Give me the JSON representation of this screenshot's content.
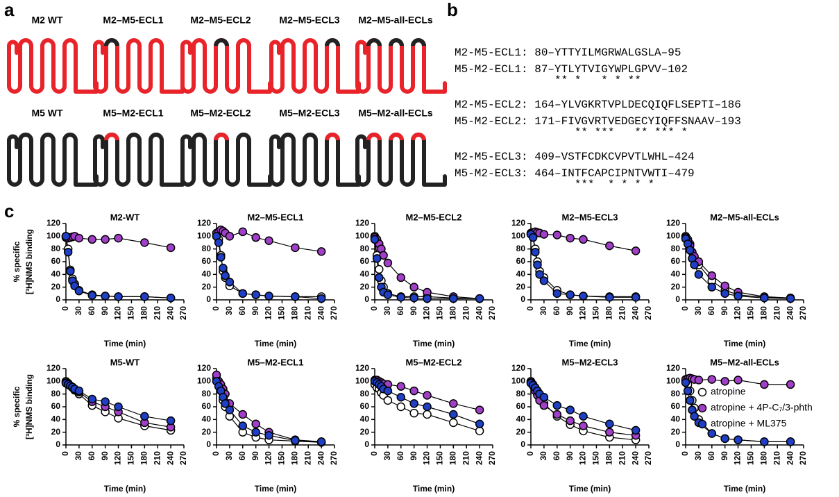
{
  "panel_labels": [
    "a",
    "b",
    "c"
  ],
  "panel_a": {
    "receptors": [
      "M2 WT",
      "M2–M5-ECL1",
      "M2–M5-ECL2",
      "M2–M5-ECL3",
      "M2–M5-all-ECLs",
      "M5 WT",
      "M5–M2-ECL1",
      "M5–M2-ECL2",
      "M5–M2-ECL3",
      "M5–M2-all-ECLs"
    ]
  },
  "panel_b": {
    "groups": [
      {
        "lines": [
          "M2-M5-ECL1: 80–YTTYILMGRWALGSLA–95",
          "M5-M2-ECL1: 87–YTLYTVIGYWPLGPVV–102"
        ],
        "stars": "               ** *   * * **"
      },
      {
        "lines": [
          "M2-M5-ECL2: 164–YLVGKRTVPLDECQIQFLSEPTI–186",
          "M5-M2-ECL2: 171–FIVGVRTVEDGECYIQFFSNAAV–193"
        ],
        "stars": "                  ** ***   ** *** *"
      },
      {
        "lines": [
          "M2-M5-ECL3: 409–VSTFCDKCVPVTLWHL–424",
          "M5-M2-ECL3: 464–INTFCAPCIPNTVWTI–479"
        ],
        "stars": "                  ***  * * * *"
      }
    ]
  },
  "chart_data": [
    {
      "type": "line",
      "title": "M2-WT",
      "xlabel": "Time (min)",
      "ylabel": [
        "% specific",
        "[³H]NMS binding"
      ],
      "x": [
        0,
        5,
        10,
        15,
        20,
        30,
        60,
        90,
        120,
        180,
        240
      ],
      "xlim": [
        0,
        270
      ],
      "xticks": [
        0,
        30,
        60,
        90,
        120,
        150,
        180,
        210,
        240,
        270
      ],
      "ylim": [
        0,
        120
      ],
      "yticks": [
        0,
        20,
        40,
        60,
        80,
        100,
        120
      ],
      "series": [
        {
          "color": "#ffffff",
          "values": [
            100,
            80,
            47,
            33,
            25,
            15,
            8,
            6,
            5,
            5,
            3
          ]
        },
        {
          "color": "#a23fc8",
          "values": [
            98,
            97,
            98,
            99,
            100,
            97,
            95,
            95,
            97,
            90,
            82
          ]
        },
        {
          "color": "#1f3fc4",
          "values": [
            100,
            75,
            45,
            30,
            22,
            14,
            7,
            6,
            5,
            5,
            3
          ]
        }
      ]
    },
    {
      "type": "line",
      "title": "M2–M5-ECL1",
      "xlabel": "Time (min)",
      "x": [
        0,
        5,
        10,
        15,
        20,
        30,
        60,
        90,
        120,
        180,
        240
      ],
      "xlim": [
        0,
        270
      ],
      "xticks": [
        0,
        30,
        60,
        90,
        120,
        150,
        180,
        210,
        240,
        270
      ],
      "ylim": [
        0,
        120
      ],
      "yticks": [
        0,
        20,
        40,
        60,
        80,
        100,
        120
      ],
      "series": [
        {
          "color": "#ffffff",
          "values": [
            100,
            95,
            70,
            45,
            35,
            22,
            10,
            8,
            6,
            5,
            5
          ]
        },
        {
          "color": "#a23fc8",
          "values": [
            105,
            107,
            110,
            108,
            105,
            100,
            107,
            98,
            93,
            82,
            76
          ]
        },
        {
          "color": "#1f3fc4",
          "values": [
            100,
            90,
            67,
            50,
            38,
            28,
            10,
            8,
            6,
            5,
            2
          ]
        }
      ]
    },
    {
      "type": "line",
      "title": "M2–M5-ECL2",
      "xlabel": "Time (min)",
      "x": [
        0,
        5,
        10,
        15,
        20,
        30,
        60,
        90,
        120,
        180,
        240
      ],
      "xlim": [
        0,
        270
      ],
      "xticks": [
        0,
        30,
        60,
        90,
        120,
        150,
        180,
        210,
        240,
        270
      ],
      "ylim": [
        0,
        120
      ],
      "yticks": [
        0,
        20,
        40,
        60,
        80,
        100,
        120
      ],
      "series": [
        {
          "color": "#ffffff",
          "values": [
            100,
            70,
            48,
            30,
            20,
            10,
            5,
            5,
            5,
            3,
            2
          ]
        },
        {
          "color": "#a23fc8",
          "values": [
            98,
            95,
            88,
            80,
            70,
            58,
            35,
            20,
            12,
            5,
            2
          ]
        },
        {
          "color": "#1f3fc4",
          "values": [
            95,
            65,
            35,
            20,
            12,
            8,
            4,
            3,
            2,
            2,
            2
          ]
        }
      ]
    },
    {
      "type": "line",
      "title": "M2–M5-ECL3",
      "xlabel": "Time (min)",
      "x": [
        0,
        5,
        10,
        15,
        20,
        30,
        60,
        90,
        120,
        180,
        240
      ],
      "xlim": [
        0,
        270
      ],
      "xticks": [
        0,
        30,
        60,
        90,
        120,
        150,
        180,
        210,
        240,
        270
      ],
      "ylim": [
        0,
        120
      ],
      "yticks": [
        0,
        20,
        40,
        60,
        80,
        100,
        120
      ],
      "series": [
        {
          "color": "#ffffff",
          "values": [
            105,
            100,
            80,
            60,
            45,
            35,
            15,
            8,
            6,
            5,
            5
          ]
        },
        {
          "color": "#a23fc8",
          "values": [
            104,
            106,
            107,
            106,
            105,
            103,
            102,
            97,
            95,
            85,
            77
          ]
        },
        {
          "color": "#1f3fc4",
          "values": [
            103,
            98,
            75,
            55,
            40,
            30,
            10,
            8,
            6,
            4,
            4
          ]
        }
      ]
    },
    {
      "type": "line",
      "title": "M2–M5-all-ECLs",
      "xlabel": "Time (min)",
      "x": [
        0,
        5,
        10,
        15,
        20,
        30,
        60,
        90,
        120,
        180,
        240
      ],
      "xlim": [
        0,
        270
      ],
      "xticks": [
        0,
        30,
        60,
        90,
        120,
        150,
        180,
        210,
        240,
        270
      ],
      "ylim": [
        0,
        120
      ],
      "yticks": [
        0,
        20,
        40,
        60,
        80,
        100,
        120
      ],
      "series": [
        {
          "color": "#ffffff",
          "values": [
            100,
            95,
            88,
            75,
            65,
            55,
            30,
            15,
            8,
            4,
            3
          ]
        },
        {
          "color": "#a23fc8",
          "values": [
            98,
            92,
            85,
            75,
            68,
            60,
            38,
            22,
            12,
            5,
            3
          ]
        },
        {
          "color": "#1f3fc4",
          "values": [
            96,
            88,
            78,
            65,
            55,
            40,
            20,
            10,
            6,
            3,
            2
          ]
        }
      ]
    },
    {
      "type": "line",
      "title": "M5-WT",
      "xlabel": "Time (min)",
      "ylabel": [
        "% specific",
        "[³H]NMS binding"
      ],
      "x": [
        0,
        5,
        10,
        15,
        20,
        30,
        60,
        90,
        120,
        180,
        240
      ],
      "xlim": [
        0,
        270
      ],
      "xticks": [
        0,
        30,
        60,
        90,
        120,
        150,
        180,
        210,
        240,
        270
      ],
      "ylim": [
        0,
        120
      ],
      "yticks": [
        0,
        20,
        40,
        60,
        80,
        100,
        120
      ],
      "series": [
        {
          "color": "#ffffff",
          "values": [
            100,
            97,
            93,
            90,
            86,
            80,
            62,
            52,
            42,
            30,
            23
          ]
        },
        {
          "color": "#a23fc8",
          "values": [
            98,
            96,
            93,
            90,
            87,
            83,
            68,
            60,
            52,
            35,
            28
          ]
        },
        {
          "color": "#1f3fc4",
          "values": [
            97,
            95,
            93,
            91,
            88,
            85,
            72,
            68,
            60,
            45,
            38
          ]
        }
      ]
    },
    {
      "type": "line",
      "title": "M5–M2-ECL1",
      "xlabel": "Time (min)",
      "x": [
        0,
        5,
        10,
        15,
        20,
        30,
        60,
        90,
        120,
        180,
        240
      ],
      "xlim": [
        0,
        270
      ],
      "xticks": [
        0,
        30,
        60,
        90,
        120,
        150,
        180,
        210,
        240,
        270
      ],
      "ylim": [
        0,
        120
      ],
      "yticks": [
        0,
        20,
        40,
        60,
        80,
        100,
        120
      ],
      "series": [
        {
          "color": "#ffffff",
          "values": [
            105,
            95,
            85,
            70,
            60,
            45,
            20,
            12,
            8,
            6,
            4
          ]
        },
        {
          "color": "#a23fc8",
          "values": [
            110,
            100,
            95,
            88,
            80,
            65,
            48,
            33,
            20,
            8,
            5
          ]
        },
        {
          "color": "#1f3fc4",
          "values": [
            100,
            92,
            85,
            75,
            65,
            55,
            30,
            20,
            15,
            7,
            5
          ]
        }
      ]
    },
    {
      "type": "line",
      "title": "M5–M2-ECL2",
      "xlabel": "Time (min)",
      "x": [
        0,
        5,
        10,
        15,
        20,
        30,
        60,
        90,
        120,
        180,
        240
      ],
      "xlim": [
        0,
        270
      ],
      "xticks": [
        0,
        30,
        60,
        90,
        120,
        150,
        180,
        210,
        240,
        270
      ],
      "ylim": [
        0,
        120
      ],
      "yticks": [
        0,
        20,
        40,
        60,
        80,
        100,
        120
      ],
      "series": [
        {
          "color": "#ffffff",
          "values": [
            95,
            90,
            88,
            82,
            78,
            70,
            60,
            50,
            48,
            35,
            22
          ]
        },
        {
          "color": "#a23fc8",
          "values": [
            102,
            102,
            100,
            98,
            96,
            95,
            92,
            85,
            78,
            65,
            55
          ]
        },
        {
          "color": "#1f3fc4",
          "values": [
            100,
            98,
            95,
            92,
            88,
            85,
            75,
            65,
            60,
            48,
            33
          ]
        }
      ]
    },
    {
      "type": "line",
      "title": "M5–M2-ECL3",
      "xlabel": "Time (min)",
      "x": [
        0,
        5,
        10,
        15,
        20,
        30,
        60,
        90,
        120,
        180,
        240
      ],
      "xlim": [
        0,
        270
      ],
      "xticks": [
        0,
        30,
        60,
        90,
        120,
        150,
        180,
        210,
        240,
        270
      ],
      "ylim": [
        0,
        120
      ],
      "yticks": [
        0,
        20,
        40,
        60,
        80,
        100,
        120
      ],
      "series": [
        {
          "color": "#ffffff",
          "values": [
            100,
            95,
            88,
            80,
            72,
            65,
            45,
            32,
            22,
            12,
            8
          ]
        },
        {
          "color": "#a23fc8",
          "values": [
            98,
            93,
            85,
            78,
            70,
            62,
            48,
            38,
            30,
            20,
            15
          ]
        },
        {
          "color": "#1f3fc4",
          "values": [
            97,
            94,
            90,
            85,
            80,
            75,
            62,
            55,
            45,
            33,
            23
          ]
        }
      ]
    },
    {
      "type": "line",
      "title": "M5–M2-all-ECLs",
      "xlabel": "Time (min)",
      "legend": "right",
      "x": [
        0,
        5,
        10,
        15,
        20,
        30,
        60,
        90,
        120,
        180,
        240
      ],
      "xlim": [
        0,
        270
      ],
      "xticks": [
        0,
        30,
        60,
        90,
        120,
        150,
        180,
        210,
        240,
        270
      ],
      "ylim": [
        0,
        120
      ],
      "yticks": [
        0,
        20,
        40,
        60,
        80,
        100,
        120
      ],
      "series": [
        {
          "name": "atropine",
          "color": "#ffffff",
          "values": [
            100,
            95,
            85,
            70,
            58,
            40,
            18,
            10,
            8,
            5,
            5
          ]
        },
        {
          "name": "atropine + 4P-C₇/3-phth",
          "color": "#a23fc8",
          "values": [
            103,
            104,
            105,
            104,
            103,
            102,
            103,
            100,
            102,
            95,
            95
          ]
        },
        {
          "name": "atropine + ML375",
          "color": "#1f3fc4",
          "values": [
            98,
            85,
            70,
            55,
            45,
            35,
            18,
            10,
            8,
            5,
            5
          ]
        }
      ]
    }
  ]
}
